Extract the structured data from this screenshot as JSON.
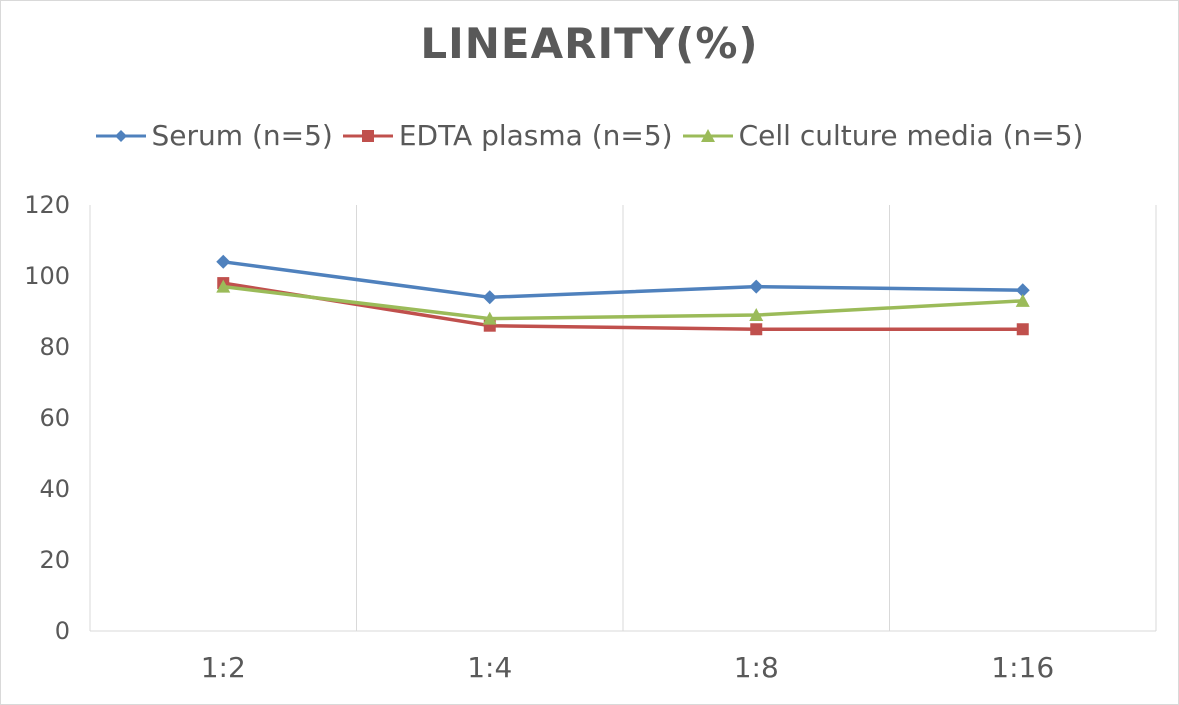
{
  "chart_data": {
    "type": "line",
    "title": "LINEARITY(%)",
    "categories": [
      "1:2",
      "1:4",
      "1:8",
      "1:16"
    ],
    "series": [
      {
        "name": "Serum (n=5)",
        "values": [
          104,
          94,
          97,
          96
        ],
        "color": "#4f81bd",
        "marker": "diamond"
      },
      {
        "name": "EDTA plasma (n=5)",
        "values": [
          98,
          86,
          85,
          85
        ],
        "color": "#c0504d",
        "marker": "square"
      },
      {
        "name": "Cell culture media (n=5)",
        "values": [
          97,
          88,
          89,
          93
        ],
        "color": "#9bbb59",
        "marker": "triangle"
      }
    ],
    "ylim": [
      0,
      120
    ],
    "yticks": [
      0,
      20,
      40,
      60,
      80,
      100,
      120
    ],
    "xlabel": "",
    "ylabel": "",
    "grid": "vertical",
    "legend_position": "top"
  }
}
